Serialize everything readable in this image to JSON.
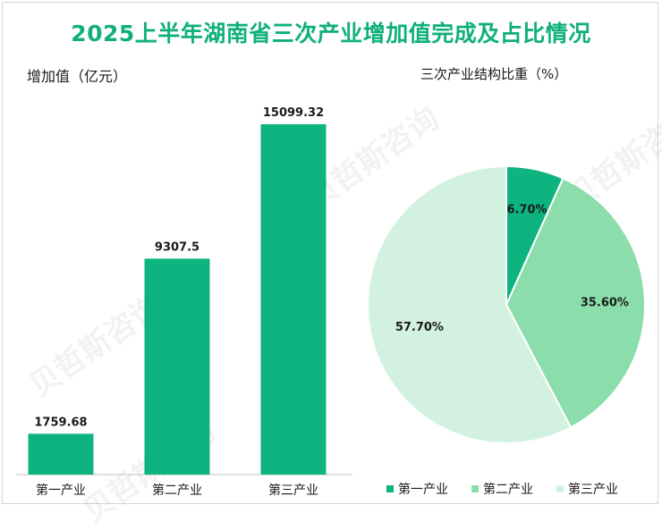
{
  "title": "2025上半年湖南省三次产业增加值完成及占比情况",
  "watermark_text": "贝哲斯咨询",
  "colors": {
    "title": "#10b07b",
    "bar": "#0db47f",
    "pie": [
      "#0db47f",
      "#8bddab",
      "#d2f1e0"
    ]
  },
  "chart_data": [
    {
      "type": "bar",
      "ylabel": "增加值（亿元）",
      "categories": [
        "第一产业",
        "第二产业",
        "第三产业"
      ],
      "values": [
        1759.68,
        9307.5,
        15099.32
      ],
      "value_labels": [
        "1759.68",
        "9307.5",
        "15099.32"
      ],
      "ylim": [
        0,
        16000
      ]
    },
    {
      "type": "pie",
      "title": "三次产业结构比重（%）",
      "labels": [
        "第一产业",
        "第二产业",
        "第三产业"
      ],
      "values": [
        6.7,
        35.6,
        57.7
      ],
      "value_labels": [
        "6.70%",
        "35.60%",
        "57.70%"
      ],
      "legend": "bottom"
    }
  ]
}
